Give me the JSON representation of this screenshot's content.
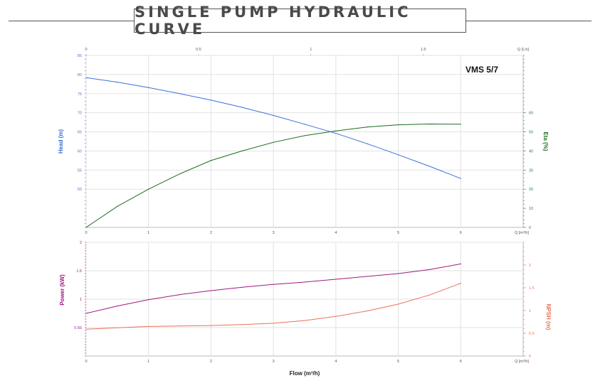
{
  "title": "SINGLE PUMP HYDRAULIC CURVE",
  "chart_data": [
    {
      "type": "line",
      "model": "VMS 5/7",
      "x": [
        0,
        0.5,
        1,
        1.5,
        2,
        2.5,
        3,
        3.5,
        4,
        4.5,
        5,
        5.5,
        6
      ],
      "x_ticks": [
        "0",
        "1",
        "2",
        "3",
        "4",
        "5",
        "6"
      ],
      "x_unit": "Q [m³/h]",
      "xlim": [
        0,
        7
      ],
      "top_ticks": [
        "0",
        "0.5",
        "1",
        "1.5"
      ],
      "top_unit": "Q [L/s]",
      "ylabel": "Head (m)",
      "y_ticks": [
        "50",
        "55",
        "60",
        "65",
        "70",
        "75",
        "80",
        "85"
      ],
      "ylim": [
        40,
        85
      ],
      "y2label": "Eta (%)",
      "y2_ticks": [
        "0",
        "10",
        "20",
        "30",
        "40",
        "50",
        "60"
      ],
      "y2lim": [
        0,
        90
      ],
      "series": [
        {
          "name": "Head (m)",
          "color": "#3a6fd8",
          "axis": "left",
          "values": [
            79.2,
            78.0,
            76.6,
            75.0,
            73.3,
            71.4,
            69.3,
            67.0,
            64.6,
            61.9,
            59.0,
            56.0,
            52.8
          ]
        },
        {
          "name": "Eta (%)",
          "color": "#1e6b1e",
          "axis": "right",
          "values": [
            0,
            11,
            20,
            28,
            35,
            40,
            44.5,
            48,
            50.5,
            52.5,
            53.7,
            54.1,
            54
          ]
        }
      ]
    },
    {
      "type": "line",
      "x": [
        0,
        0.5,
        1,
        1.5,
        2,
        2.5,
        3,
        3.5,
        4,
        4.5,
        5,
        5.5,
        6
      ],
      "x_ticks": [
        "0",
        "1",
        "2",
        "3",
        "4",
        "5",
        "6"
      ],
      "x_unit": "Q [m³/h]",
      "xlim": [
        0,
        7
      ],
      "xlabel": "Flow (m³/h)",
      "ylabel": "Power (kW)",
      "y_ticks": [
        "0.50",
        "1",
        "1.5",
        "2"
      ],
      "ylim": [
        0,
        2
      ],
      "y2label": "NPSH (m)",
      "y2_ticks": [
        "0",
        "0.5",
        "1",
        "1.5",
        "2"
      ],
      "y2lim": [
        0,
        2.5
      ],
      "series": [
        {
          "name": "Power (kW)",
          "color": "#a0197e",
          "axis": "left",
          "values": [
            0.75,
            0.88,
            0.99,
            1.08,
            1.15,
            1.21,
            1.26,
            1.3,
            1.35,
            1.4,
            1.45,
            1.52,
            1.62
          ]
        },
        {
          "name": "NPSH (m)",
          "color": "#e8725a",
          "axis": "right",
          "values": [
            0.59,
            0.62,
            0.65,
            0.66,
            0.67,
            0.69,
            0.72,
            0.78,
            0.87,
            0.99,
            1.14,
            1.34,
            1.6
          ]
        }
      ]
    }
  ]
}
